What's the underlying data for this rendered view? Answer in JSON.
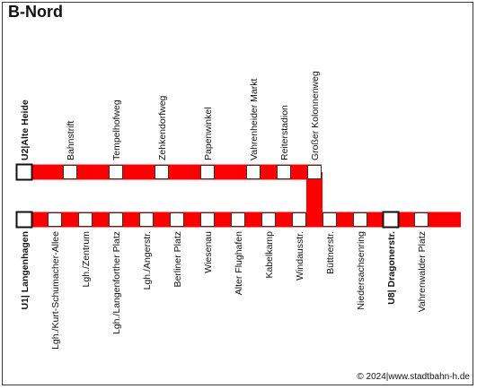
{
  "title": "B-Nord",
  "copyright": "© 2024|www.stadtbahn-h.de",
  "colors": {
    "line": "#ff0000",
    "stop_fill": "#ffffff",
    "stop_border": "#333333"
  },
  "lines": {
    "upper": {
      "stations": [
        {
          "name": "U2|Alte Heide",
          "terminus": true
        },
        {
          "name": "Bahnstrift"
        },
        {
          "name": "Tempelhofweg"
        },
        {
          "name": "Zehkendorfweg"
        },
        {
          "name": "Papenwinkel"
        },
        {
          "name": "Vahrenheider Markt"
        },
        {
          "name": "Reiterstadion"
        },
        {
          "name": "Großer Kolonnenweg"
        }
      ]
    },
    "lower": {
      "stations": [
        {
          "name": "U1| Langenhagen",
          "terminus": true
        },
        {
          "name": "Lgh./Kurt-Schumacher-Allee"
        },
        {
          "name": "Lgh./Zentrum"
        },
        {
          "name": "Lgh./Langenforther Platz"
        },
        {
          "name": "Lgh./Angerstr."
        },
        {
          "name": "Berliner Platz"
        },
        {
          "name": "Wiesenau"
        },
        {
          "name": "Alter Flughafen"
        },
        {
          "name": "Kabelkamp"
        },
        {
          "name": "Windausstr."
        },
        {
          "name": "Büttnerstr."
        },
        {
          "name": "Niedersachsenring"
        },
        {
          "name": "U8| Dragonerstr.",
          "terminus": true
        },
        {
          "name": "Vahrenwalder Platz"
        }
      ]
    }
  }
}
